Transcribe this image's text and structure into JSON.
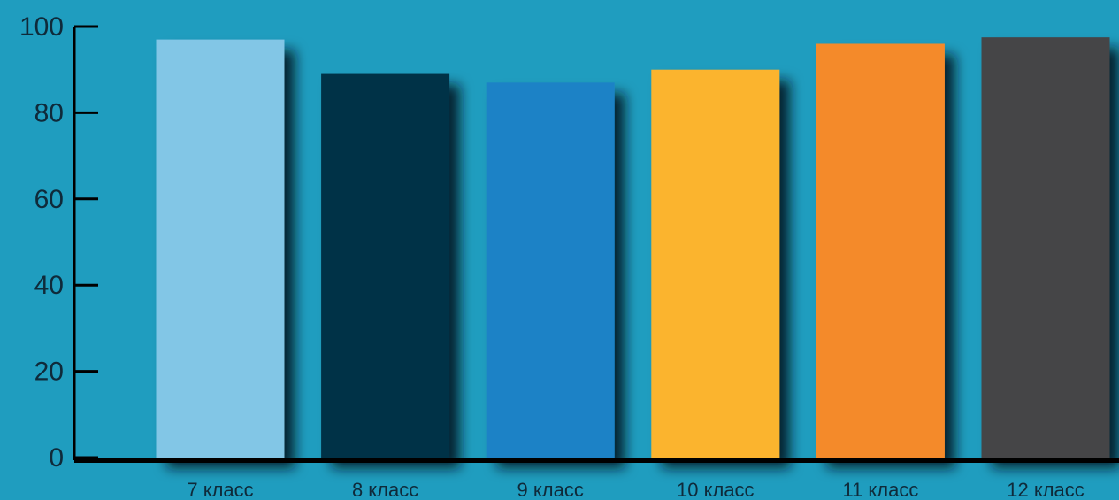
{
  "chart_data": {
    "type": "bar",
    "title": "",
    "xlabel": "",
    "ylabel": "",
    "categories": [
      "7 класс",
      "8 класс",
      "9 класс",
      "10 класс",
      "11 класс",
      "12 класс"
    ],
    "values": [
      97,
      89,
      87,
      90,
      96,
      97.5
    ],
    "colors": [
      "#82c6e6",
      "#023147",
      "#1b82c6",
      "#fbb42e",
      "#f48a29",
      "#444446"
    ],
    "ylim": [
      0,
      100
    ],
    "yticks": [
      0,
      20,
      40,
      60,
      80,
      100
    ],
    "grid": false,
    "legend": "none"
  },
  "style": {
    "background": "#1f9dbf",
    "axis_color": "#000000",
    "text_color": "#0f2a3a"
  }
}
